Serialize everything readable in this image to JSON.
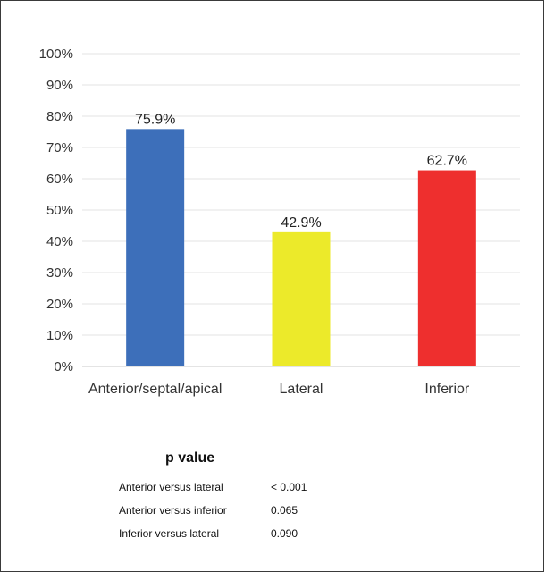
{
  "chart_data": {
    "type": "bar",
    "categories": [
      "Anterior/septal/apical",
      "Lateral",
      "Inferior"
    ],
    "values": [
      75.9,
      42.9,
      62.7
    ],
    "data_labels": [
      "75.9%",
      "42.9%",
      "62.7%"
    ],
    "colors": [
      "#3d6fba",
      "#ecea2a",
      "#ee2f2e"
    ],
    "ylim": [
      0,
      100
    ],
    "y_ticks": [
      "0%",
      "10%",
      "20%",
      "30%",
      "40%",
      "50%",
      "60%",
      "70%",
      "80%",
      "90%",
      "100%"
    ],
    "grid": true,
    "title": "",
    "xlabel": "",
    "ylabel": ""
  },
  "p_value_table": {
    "title": "p value",
    "rows": [
      {
        "comparison": "Anterior versus lateral",
        "value": "< 0.001"
      },
      {
        "comparison": "Anterior versus inferior",
        "value": "0.065"
      },
      {
        "comparison": "Inferior versus lateral",
        "value": "0.090"
      }
    ]
  }
}
